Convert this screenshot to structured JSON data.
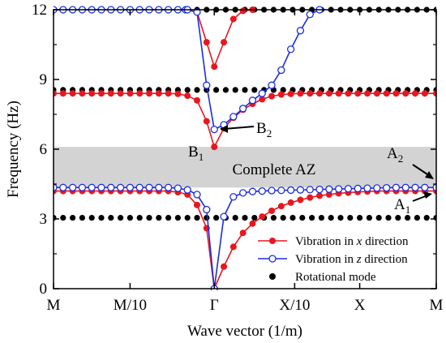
{
  "chart_data": {
    "type": "line",
    "title": "",
    "xlabel": "Wave vector (1/m)",
    "ylabel": "Frequency (Hz)",
    "ylim": [
      0,
      12
    ],
    "yticks": [
      0,
      3,
      6,
      9,
      12
    ],
    "xtick_labels": [
      "M",
      "M/10",
      "Γ",
      "X/10",
      "X",
      "M"
    ],
    "x_domain": [
      0,
      10
    ],
    "xtick_positions": [
      0,
      2,
      4.2,
      6.3,
      8,
      10
    ],
    "grid": false,
    "legend_position": "bottom-right",
    "band": {
      "label": "Complete AZ",
      "range": [
        4.35,
        6.1
      ],
      "color": "#d3d3d3"
    },
    "colors": {
      "x_direction": "#e8171f",
      "z_direction": "#1a2ee0",
      "rotational": "#000000",
      "band": "#d3d3d3"
    },
    "series": [
      {
        "name": "Vibration in x direction",
        "marker": "filled-circle",
        "color": "#e8171f",
        "branches": [
          {
            "x": [
              0,
              0.25,
              0.5,
              0.75,
              1,
              1.25,
              1.5,
              1.75,
              2,
              2.25,
              2.5,
              2.75,
              3,
              3.25,
              3.5,
              3.75,
              4,
              4.2,
              4.45,
              4.7,
              4.95,
              5.2,
              5.45,
              5.7,
              5.95,
              6.2,
              6.45,
              6.7,
              6.95,
              7.2,
              7.45,
              7.7,
              7.95,
              8.2,
              8.45,
              8.7,
              8.95,
              9.2,
              9.45,
              9.7,
              10
            ],
            "y": [
              4.2,
              4.2,
              4.2,
              4.2,
              4.2,
              4.2,
              4.2,
              4.2,
              4.2,
              4.2,
              4.2,
              4.2,
              4.2,
              4.15,
              4.05,
              3.6,
              2.6,
              0,
              0.95,
              1.8,
              2.4,
              2.8,
              3.1,
              3.35,
              3.55,
              3.7,
              3.82,
              3.92,
              4.0,
              4.05,
              4.1,
              4.13,
              4.16,
              4.18,
              4.2,
              4.2,
              4.2,
              4.2,
              4.2,
              4.2,
              4.2
            ]
          },
          {
            "x": [
              0,
              0.25,
              0.5,
              0.75,
              1,
              1.25,
              1.5,
              1.75,
              2,
              2.25,
              2.5,
              2.75,
              3,
              3.25,
              3.5,
              3.75,
              4,
              4.2,
              4.45,
              4.7,
              4.95,
              5.2,
              5.45,
              5.7,
              5.95,
              6.2,
              6.45,
              6.7,
              6.95,
              7.2,
              7.45,
              7.7,
              7.95,
              8.2,
              8.45,
              8.7,
              8.95,
              9.2,
              9.45,
              9.7,
              10
            ],
            "y": [
              8.4,
              8.4,
              8.4,
              8.4,
              8.4,
              8.4,
              8.4,
              8.4,
              8.4,
              8.4,
              8.4,
              8.4,
              8.4,
              8.38,
              8.3,
              8.1,
              7.2,
              6.1,
              6.9,
              7.35,
              7.7,
              7.95,
              8.15,
              8.28,
              8.35,
              8.38,
              8.4,
              8.4,
              8.4,
              8.4,
              8.4,
              8.4,
              8.4,
              8.4,
              8.4,
              8.4,
              8.4,
              8.4,
              8.4,
              8.4,
              8.4
            ]
          },
          {
            "x": [
              3.45,
              3.75,
              4.0,
              4.2,
              4.45,
              4.7,
              4.95,
              5.2
            ],
            "y": [
              12.0,
              11.9,
              10.6,
              9.55,
              10.6,
              11.6,
              11.95,
              12.0
            ]
          }
        ]
      },
      {
        "name": "Vibration in z direction",
        "marker": "open-circle",
        "color": "#1a2ee0",
        "branches": [
          {
            "x": [
              0,
              0.25,
              0.5,
              0.75,
              1,
              1.25,
              1.5,
              1.75,
              2,
              2.25,
              2.5,
              2.75,
              3,
              3.25,
              3.5,
              3.75,
              4,
              4.2,
              4.45,
              4.7,
              4.95,
              5.2,
              5.45,
              5.7,
              5.95,
              6.2,
              6.45,
              6.7,
              6.95,
              7.2,
              7.45,
              7.7,
              7.95,
              8.2,
              8.45,
              8.7,
              8.95,
              9.2,
              9.45,
              9.7,
              10
            ],
            "y": [
              4.35,
              4.35,
              4.35,
              4.35,
              4.35,
              4.35,
              4.35,
              4.35,
              4.35,
              4.35,
              4.35,
              4.35,
              4.35,
              4.32,
              4.25,
              4.05,
              3.4,
              0,
              3.1,
              3.95,
              4.12,
              4.18,
              4.2,
              4.22,
              4.23,
              4.24,
              4.25,
              4.26,
              4.27,
              4.28,
              4.29,
              4.3,
              4.31,
              4.32,
              4.33,
              4.34,
              4.35,
              4.35,
              4.35,
              4.35,
              4.35
            ]
          },
          {
            "x": [
              3.45,
              3.75,
              4.0,
              4.2,
              4.45,
              4.7,
              4.95,
              5.2,
              5.45,
              5.7,
              5.95,
              6.2,
              6.45,
              6.7,
              6.95
            ],
            "y": [
              12.0,
              11.9,
              8.75,
              6.85,
              7.05,
              7.4,
              7.75,
              8.1,
              8.4,
              8.75,
              9.4,
              10.3,
              11.1,
              11.8,
              12.0
            ]
          },
          {
            "x": [
              0,
              0.25,
              0.5,
              0.75,
              1,
              1.25,
              1.5,
              1.75,
              2,
              2.25,
              2.5,
              2.75,
              3,
              3.25,
              3.5
            ],
            "y": [
              12.0,
              12.0,
              12.0,
              12.0,
              12.0,
              12.0,
              12.0,
              12.0,
              12.0,
              12.0,
              12.0,
              12.0,
              12.0,
              12.0,
              12.0
            ]
          }
        ]
      },
      {
        "name": "Rotational mode",
        "marker": "dots",
        "color": "#000000",
        "levels": [
          3.05,
          8.55,
          12.0
        ],
        "spacing": 0.25
      }
    ],
    "annotations": [
      {
        "text": "Complete AZ"
      },
      {
        "main": "B",
        "sub": "1"
      },
      {
        "main": "B",
        "sub": "2"
      },
      {
        "main": "A",
        "sub": "2"
      },
      {
        "main": "A",
        "sub": "1"
      }
    ]
  }
}
